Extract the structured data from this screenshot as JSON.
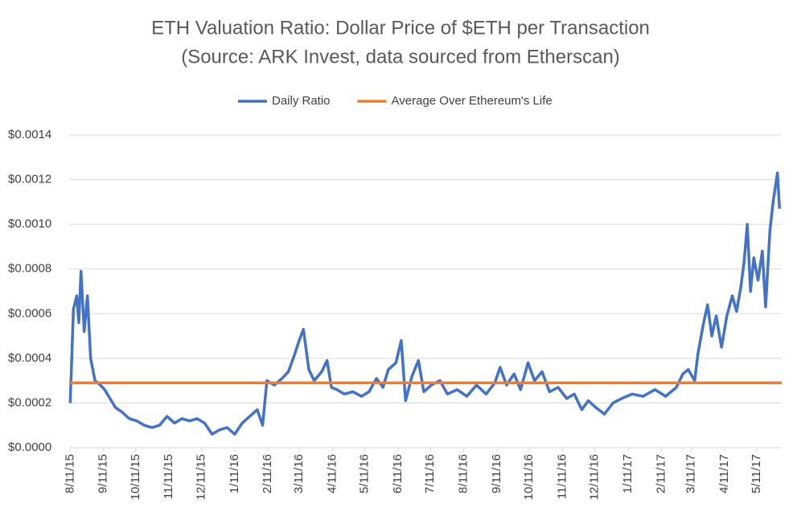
{
  "chart_data": {
    "type": "line",
    "title": "ETH Valuation Ratio: Dollar Price of $ETH per Transaction",
    "subtitle": "(Source: ARK Invest, data sourced from Etherscan)",
    "series": [
      {
        "name": "Daily Ratio",
        "color": "#4472c4",
        "x": [
          "8/11/15",
          "8/14/15",
          "8/17/15",
          "8/19/15",
          "8/21/15",
          "8/24/15",
          "8/27/15",
          "8/30/15",
          "9/3/15",
          "9/8/15",
          "9/12/15",
          "9/17/15",
          "9/22/15",
          "9/28/15",
          "10/5/15",
          "10/12/15",
          "10/19/15",
          "10/26/15",
          "11/2/15",
          "11/9/15",
          "11/16/15",
          "11/23/15",
          "11/30/15",
          "12/7/15",
          "12/14/15",
          "12/21/15",
          "12/28/15",
          "1/4/16",
          "1/11/16",
          "1/18/16",
          "1/25/16",
          "2/1/16",
          "2/6/16",
          "2/10/16",
          "2/17/16",
          "2/24/16",
          "3/1/16",
          "3/7/16",
          "3/11/16",
          "3/15/16",
          "3/20/16",
          "3/25/16",
          "4/1/16",
          "4/6/16",
          "4/10/16",
          "4/15/16",
          "4/22/16",
          "4/30/16",
          "5/8/16",
          "5/15/16",
          "5/22/16",
          "5/28/16",
          "6/2/16",
          "6/9/16",
          "6/14/16",
          "6/18/16",
          "6/24/16",
          "6/30/16",
          "7/5/16",
          "7/12/16",
          "7/20/16",
          "7/27/16",
          "8/5/16",
          "8/14/16",
          "8/23/16",
          "9/1/16",
          "9/9/16",
          "9/14/16",
          "9/20/16",
          "9/27/16",
          "10/3/16",
          "10/10/16",
          "10/16/16",
          "10/23/16",
          "10/30/16",
          "11/7/16",
          "11/15/16",
          "11/22/16",
          "11/29/16",
          "12/5/16",
          "12/12/16",
          "12/20/16",
          "12/28/16",
          "1/5/17",
          "1/15/17",
          "1/25/17",
          "2/5/17",
          "2/15/17",
          "2/25/17",
          "3/3/17",
          "3/8/17",
          "3/14/17",
          "3/17/17",
          "3/22/17",
          "3/26/17",
          "3/30/17",
          "4/3/17",
          "4/8/17",
          "4/13/17",
          "4/18/17",
          "4/22/17",
          "4/26/17",
          "4/29/17",
          "5/2/17",
          "5/5/17",
          "5/8/17",
          "5/12/17",
          "5/16/17",
          "5/19/17",
          "5/23/17",
          "5/26/17",
          "5/30/17",
          "6/1/17"
        ],
        "values": [
          0.0002,
          0.00062,
          0.00068,
          0.00056,
          0.00079,
          0.00052,
          0.00068,
          0.0004,
          0.0003,
          0.00028,
          0.00026,
          0.00022,
          0.00018,
          0.00016,
          0.00013,
          0.00012,
          0.0001,
          9e-05,
          0.0001,
          0.00014,
          0.00011,
          0.00013,
          0.00012,
          0.00013,
          0.00011,
          6e-05,
          8e-05,
          9e-05,
          6e-05,
          0.00011,
          0.00014,
          0.00017,
          0.0001,
          0.0003,
          0.00028,
          0.00031,
          0.00034,
          0.00042,
          0.00048,
          0.00053,
          0.00035,
          0.0003,
          0.00034,
          0.00039,
          0.00027,
          0.00026,
          0.00024,
          0.00025,
          0.00023,
          0.00025,
          0.00031,
          0.00027,
          0.00035,
          0.00038,
          0.00048,
          0.00021,
          0.00032,
          0.00039,
          0.00025,
          0.00028,
          0.0003,
          0.00024,
          0.00026,
          0.00023,
          0.00028,
          0.00024,
          0.00029,
          0.00036,
          0.00028,
          0.00033,
          0.00026,
          0.00038,
          0.0003,
          0.00034,
          0.00025,
          0.00027,
          0.00022,
          0.00024,
          0.00017,
          0.00021,
          0.00018,
          0.00015,
          0.0002,
          0.00022,
          0.00024,
          0.00023,
          0.00026,
          0.00023,
          0.00027,
          0.00033,
          0.00035,
          0.0003,
          0.00042,
          0.00055,
          0.00064,
          0.0005,
          0.00059,
          0.00045,
          0.00059,
          0.00068,
          0.00061,
          0.00072,
          0.00083,
          0.001,
          0.0007,
          0.00085,
          0.00075,
          0.00088,
          0.00063,
          0.00097,
          0.0011,
          0.00123,
          0.00107
        ]
      }
    ],
    "average_line": {
      "name": "Average Over Ethereum's Life",
      "color": "#ed7d31",
      "value": 0.00029
    },
    "xlim": [
      "8/10/15",
      "6/3/17"
    ],
    "xticks": [
      "8/11/15",
      "9/11/15",
      "10/11/15",
      "11/11/15",
      "12/11/15",
      "1/11/16",
      "2/11/16",
      "3/11/16",
      "4/11/16",
      "5/11/16",
      "6/11/16",
      "7/11/16",
      "8/11/16",
      "9/11/16",
      "10/11/16",
      "11/11/16",
      "12/11/16",
      "1/11/17",
      "2/11/17",
      "3/11/17",
      "4/11/17",
      "5/11/17"
    ],
    "ylim": [
      0,
      0.0014
    ],
    "yticks": [
      {
        "value": 0,
        "label": "$0.0000"
      },
      {
        "value": 0.0002,
        "label": "$0.0002"
      },
      {
        "value": 0.0004,
        "label": "$0.0004"
      },
      {
        "value": 0.0006,
        "label": "$0.0006"
      },
      {
        "value": 0.0008,
        "label": "$0.0008"
      },
      {
        "value": 0.001,
        "label": "$0.0010"
      },
      {
        "value": 0.0012,
        "label": "$0.0012"
      },
      {
        "value": 0.0014,
        "label": "$0.0014"
      }
    ],
    "grid": true,
    "legend": "top"
  }
}
